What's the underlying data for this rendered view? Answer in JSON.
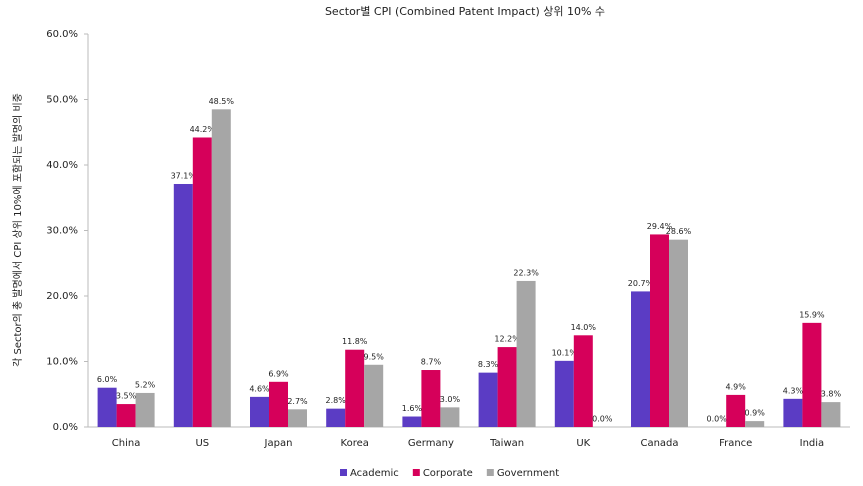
{
  "chart_data": {
    "type": "bar",
    "title": "Sector별 CPI (Combined Patent Impact) 상위 10% 수",
    "y_label": "각 Sector의 총 발명에서 CPI 상위 10%에 포함되는 발명의 비중",
    "categories": [
      "China",
      "US",
      "Japan",
      "Korea",
      "Germany",
      "Taiwan",
      "UK",
      "Canada",
      "France",
      "India"
    ],
    "series": [
      {
        "name": "Academic",
        "color": "#5b3cc4",
        "values": [
          6.0,
          37.1,
          4.6,
          2.8,
          1.6,
          8.3,
          10.1,
          20.7,
          0.0,
          4.3
        ],
        "value_labels": [
          "6.0%",
          "37.1%",
          "4.6%",
          "2.8%",
          "1.6%",
          "8.3%",
          "10.1%",
          "20.7%",
          "0.0%",
          "4.3%"
        ]
      },
      {
        "name": "Corporate",
        "color": "#d6005a",
        "values": [
          3.5,
          44.2,
          6.9,
          11.8,
          8.7,
          12.2,
          14.0,
          29.4,
          4.9,
          15.9
        ],
        "value_labels": [
          "3.5%",
          "44.2%",
          "6.9%",
          "11.8%",
          "8.7%",
          "12.2%",
          "14.0%",
          "29.4%",
          "4.9%",
          "15.9%"
        ]
      },
      {
        "name": "Government",
        "color": "#a6a6a6",
        "values": [
          5.2,
          48.5,
          2.7,
          9.5,
          3.0,
          22.3,
          0.0,
          28.6,
          0.9,
          3.8
        ],
        "value_labels": [
          "5.2%",
          "48.5%",
          "2.7%",
          "9.5%",
          "3.0%",
          "22.3%",
          "0.0%",
          "28.6%",
          "0.9%",
          "3.8%"
        ]
      }
    ],
    "ylim": [
      0,
      60
    ],
    "yticks": [
      {
        "value": 0,
        "label": "0.0%"
      },
      {
        "value": 10,
        "label": "10.0%"
      },
      {
        "value": 20,
        "label": "20.0%"
      },
      {
        "value": 30,
        "label": "30.0%"
      },
      {
        "value": 40,
        "label": "40.0%"
      },
      {
        "value": 50,
        "label": "50.0%"
      },
      {
        "value": 60,
        "label": "60.0%"
      }
    ],
    "legend": "bottom"
  }
}
